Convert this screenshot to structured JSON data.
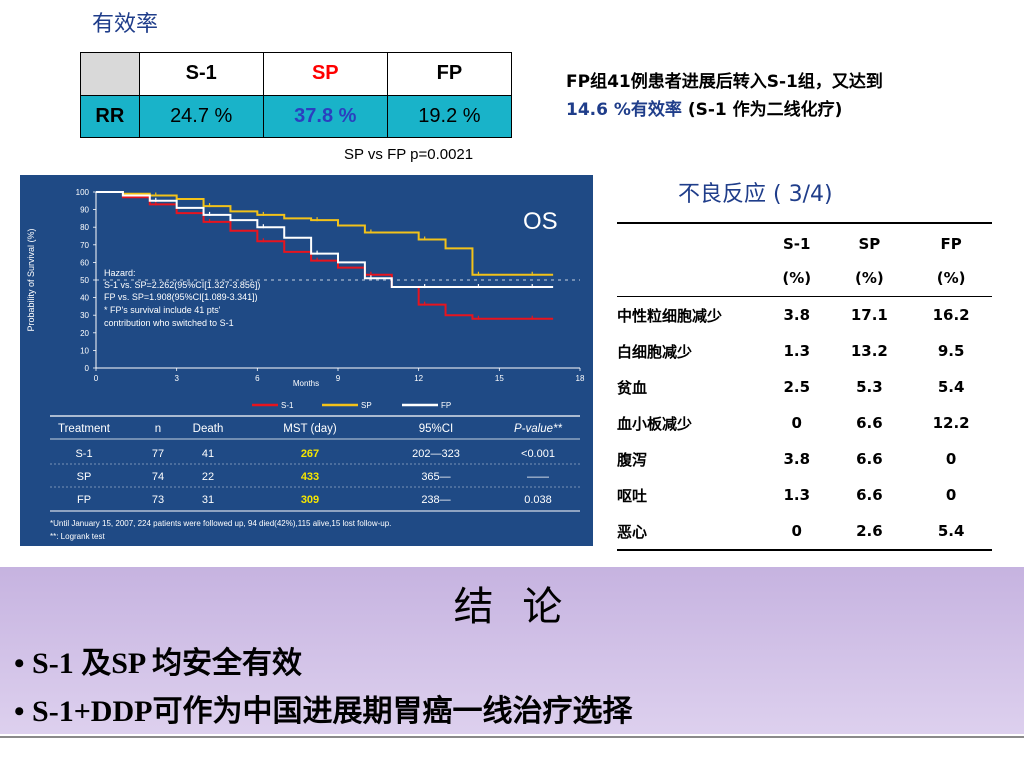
{
  "rr": {
    "title": "有效率",
    "header": [
      "",
      "S-1",
      "SP",
      "FP"
    ],
    "row_label": "RR",
    "values": [
      "24.7 %",
      "37.8 %",
      "19.2 %"
    ],
    "pvalue": "SP vs FP p=0.0021"
  },
  "note": {
    "line1": "FP组41例患者进展后转入S-1组，又达到",
    "line2_prefix": "14.6 %有效率",
    "line2_suffix": " (S-1 作为二线化疗)"
  },
  "km": {
    "os_label": "OS",
    "ylabel": "Probability of Survival (%)",
    "xlabel": "Months",
    "yticks": [
      "100",
      "90",
      "80",
      "70",
      "60",
      "50",
      "40",
      "30",
      "20",
      "10",
      "0"
    ],
    "xticks": [
      "0",
      "3",
      "6",
      "9",
      "12",
      "15",
      "18"
    ],
    "hazard": [
      "Hazard:",
      "S-1 vs. SP=2.262(95%CI[1.327-3.856])",
      "FP vs. SP=1.908(95%CI[1.089-3.341])",
      "* FP's survival include 41 pts'",
      "contribution who switched to S-1"
    ],
    "legend": [
      "S-1",
      "SP",
      "FP"
    ],
    "colors": {
      "s1": "#e8141e",
      "sp": "#f2c21a",
      "fp": "#ffffff",
      "highlight": "#f6e600"
    },
    "table_header": [
      "Treatment",
      "n",
      "Death",
      "MST (day)",
      "95%CI",
      "P-value**"
    ],
    "table_rows": [
      [
        "S-1",
        "77",
        "41",
        "267",
        "202—323",
        "<0.001"
      ],
      [
        "SP",
        "74",
        "22",
        "433",
        "365—",
        "——"
      ],
      [
        "FP",
        "73",
        "31",
        "309",
        "238—",
        "0.038"
      ]
    ],
    "footnotes": [
      "*Until January 15, 2007, 224 patients were followed up, 94 died(42%),115 alive,15 lost follow-up.",
      "**: Logrank test"
    ]
  },
  "chart_data": {
    "type": "line",
    "title": "OS",
    "xlabel": "Months",
    "ylabel": "Probability of Survival (%)",
    "xlim": [
      0,
      18
    ],
    "ylim": [
      0,
      100
    ],
    "series": [
      {
        "name": "S-1",
        "x": [
          0,
          1,
          2,
          3,
          4,
          5,
          6,
          7,
          8,
          9,
          10,
          11,
          12,
          13,
          14,
          15,
          16,
          17
        ],
        "values": [
          100,
          97,
          93,
          88,
          83,
          78,
          72,
          66,
          61,
          57,
          53,
          46,
          36,
          30,
          28,
          28,
          28,
          28
        ]
      },
      {
        "name": "SP",
        "x": [
          0,
          1,
          2,
          3,
          4,
          5,
          6,
          7,
          8,
          9,
          10,
          11,
          12,
          13,
          14,
          15,
          16,
          17
        ],
        "values": [
          100,
          99,
          98,
          96,
          92,
          89,
          87,
          85,
          84,
          81,
          77,
          77,
          73,
          68,
          53,
          53,
          53,
          53
        ]
      },
      {
        "name": "FP",
        "x": [
          0,
          1,
          2,
          3,
          4,
          5,
          6,
          7,
          8,
          9,
          10,
          11,
          12,
          13,
          14,
          15,
          16,
          17
        ],
        "values": [
          100,
          98,
          95,
          91,
          87,
          84,
          80,
          74,
          65,
          60,
          51,
          46,
          46,
          46,
          46,
          46,
          46,
          46
        ]
      }
    ],
    "reference_line": 50
  },
  "ae": {
    "title": "不良反应 ( 3/4)",
    "header1": [
      "",
      "S-1",
      "SP",
      "FP"
    ],
    "header2": [
      "",
      "(%)",
      "(%)",
      "(%)"
    ],
    "rows": [
      [
        "中性粒细胞减少",
        "3.8",
        "17.1",
        "16.2"
      ],
      [
        "白细胞减少",
        "1.3",
        "13.2",
        "9.5"
      ],
      [
        "贫血",
        "2.5",
        "5.3",
        "5.4"
      ],
      [
        "血小板减少",
        "0",
        "6.6",
        "12.2"
      ],
      [
        "腹泻",
        "3.8",
        "6.6",
        "0"
      ],
      [
        "呕吐",
        "1.3",
        "6.6",
        "0"
      ],
      [
        "恶心",
        "0",
        "2.6",
        "5.4"
      ]
    ]
  },
  "conclusion": {
    "title": "结 论",
    "bullets": [
      "S-1 及SP 均安全有效",
      "S-1+DDP可作为中国进展期胃癌一线治疗选择"
    ]
  }
}
